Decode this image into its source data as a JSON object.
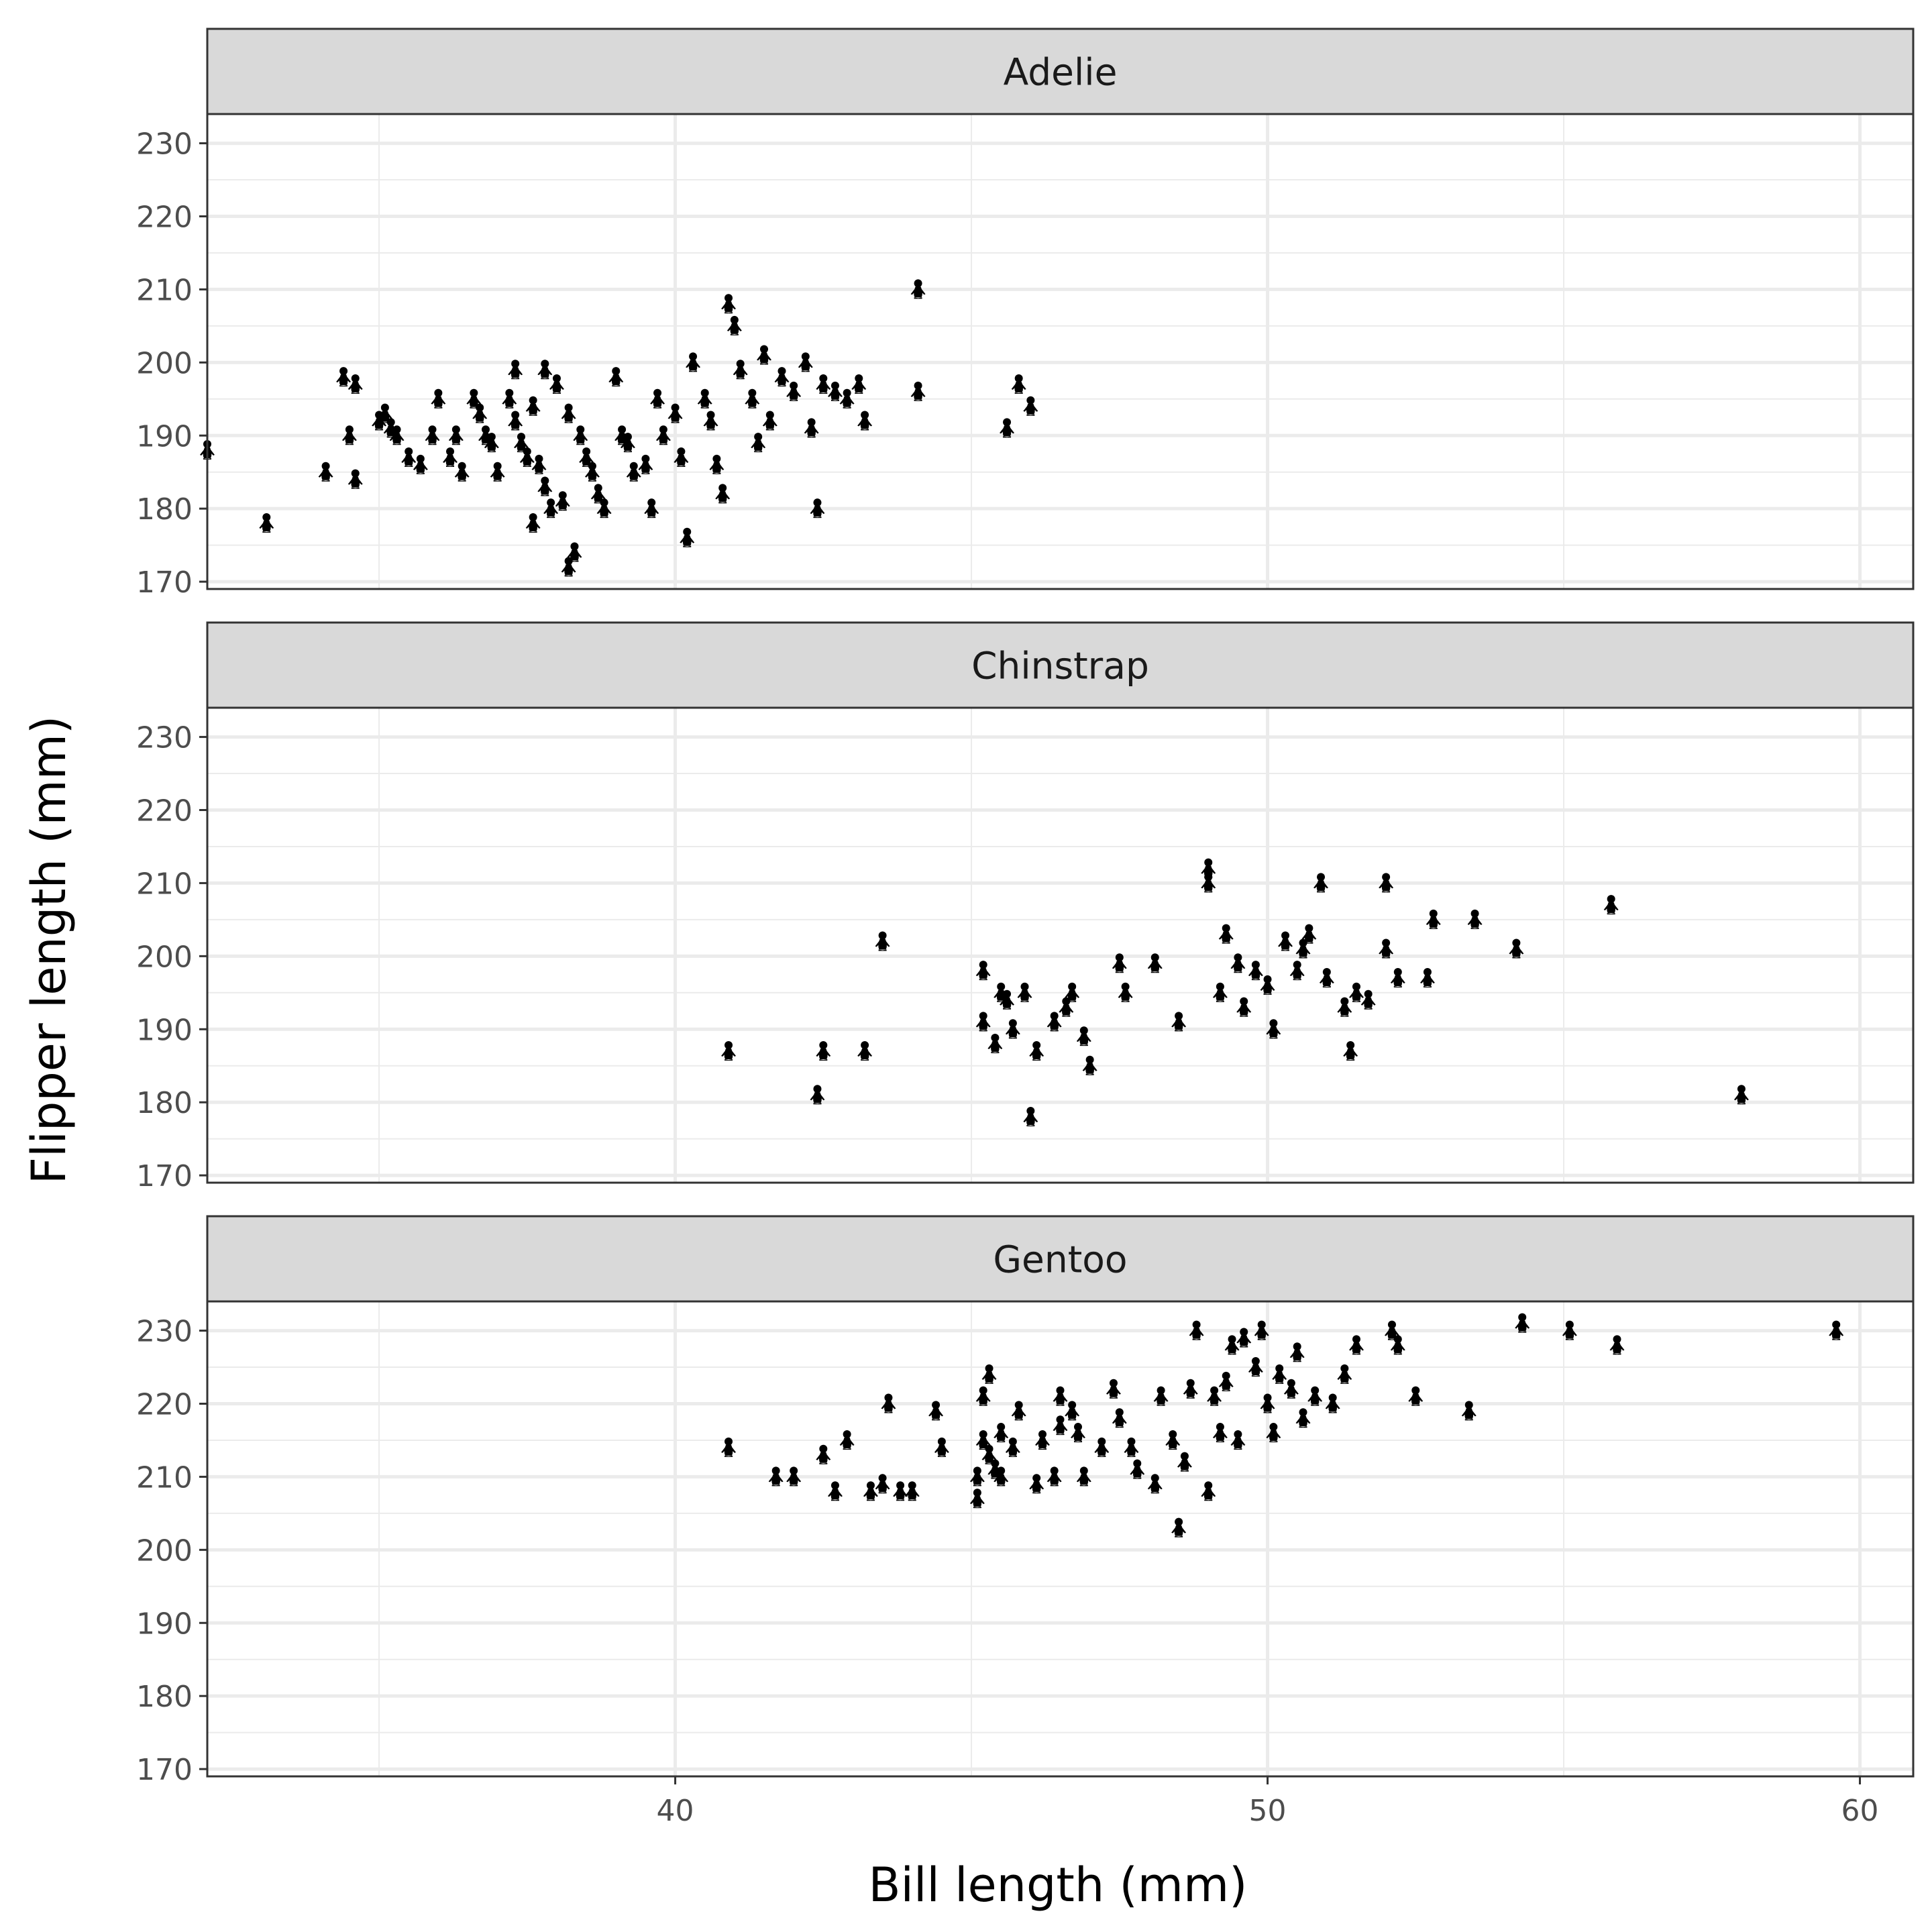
{
  "chart_data": {
    "type": "scatter",
    "marker": "penguin-icon",
    "xlabel": "Bill length (mm)",
    "ylabel": "Flipper length (mm)",
    "xlim": [
      32.1,
      60.9
    ],
    "ylim": [
      169,
      234
    ],
    "x_ticks": [
      40,
      50,
      60
    ],
    "y_ticks": [
      170,
      180,
      190,
      200,
      210,
      220,
      230
    ],
    "x_tick_labels": [
      "40",
      "50",
      "60"
    ],
    "y_tick_labels": [
      "170",
      "180",
      "190",
      "200",
      "210",
      "220",
      "230"
    ],
    "grid": true,
    "facets": [
      {
        "label": "Adelie",
        "points": [
          [
            32.1,
            188
          ],
          [
            33.1,
            178
          ],
          [
            34.5,
            190
          ],
          [
            34.1,
            185
          ],
          [
            34.6,
            184
          ],
          [
            34.4,
            198
          ],
          [
            34.6,
            197
          ],
          [
            35.0,
            192
          ],
          [
            35.3,
            190
          ],
          [
            35.5,
            187
          ],
          [
            35.7,
            186
          ],
          [
            35.9,
            190
          ],
          [
            36.0,
            195
          ],
          [
            35.1,
            193
          ],
          [
            35.2,
            191
          ],
          [
            36.2,
            187
          ],
          [
            36.3,
            190
          ],
          [
            36.4,
            185
          ],
          [
            36.6,
            195
          ],
          [
            36.7,
            193
          ],
          [
            36.8,
            190
          ],
          [
            36.9,
            189
          ],
          [
            37.0,
            185
          ],
          [
            37.2,
            195
          ],
          [
            37.3,
            192
          ],
          [
            37.4,
            189
          ],
          [
            37.5,
            187
          ],
          [
            37.6,
            194
          ],
          [
            37.7,
            186
          ],
          [
            37.8,
            183
          ],
          [
            37.9,
            180
          ],
          [
            38.1,
            181
          ],
          [
            37.6,
            178
          ],
          [
            38.2,
            172
          ],
          [
            38.3,
            174
          ],
          [
            37.3,
            199
          ],
          [
            37.8,
            199
          ],
          [
            38.0,
            197
          ],
          [
            38.2,
            193
          ],
          [
            38.4,
            190
          ],
          [
            38.5,
            187
          ],
          [
            38.6,
            185
          ],
          [
            38.7,
            182
          ],
          [
            38.8,
            180
          ],
          [
            39.0,
            198
          ],
          [
            39.1,
            190
          ],
          [
            39.2,
            189
          ],
          [
            39.3,
            185
          ],
          [
            39.5,
            186
          ],
          [
            39.6,
            180
          ],
          [
            39.7,
            195
          ],
          [
            39.8,
            190
          ],
          [
            40.0,
            193
          ],
          [
            40.1,
            187
          ],
          [
            40.2,
            176
          ],
          [
            40.3,
            200
          ],
          [
            40.5,
            195
          ],
          [
            40.6,
            192
          ],
          [
            40.7,
            186
          ],
          [
            40.8,
            182
          ],
          [
            40.9,
            208
          ],
          [
            41.0,
            205
          ],
          [
            41.1,
            199
          ],
          [
            41.3,
            195
          ],
          [
            41.4,
            189
          ],
          [
            41.5,
            201
          ],
          [
            41.6,
            192
          ],
          [
            41.8,
            198
          ],
          [
            42.0,
            196
          ],
          [
            42.2,
            200
          ],
          [
            42.3,
            191
          ],
          [
            42.4,
            180
          ],
          [
            42.5,
            197
          ],
          [
            42.7,
            196
          ],
          [
            42.9,
            195
          ],
          [
            43.1,
            197
          ],
          [
            43.2,
            192
          ],
          [
            44.1,
            210
          ],
          [
            44.1,
            196
          ],
          [
            45.6,
            191
          ],
          [
            45.8,
            197
          ],
          [
            46.0,
            194
          ]
        ]
      },
      {
        "label": "Chinstrap",
        "points": [
          [
            40.9,
            187
          ],
          [
            42.4,
            181
          ],
          [
            42.5,
            187
          ],
          [
            43.2,
            187
          ],
          [
            43.5,
            202
          ],
          [
            45.2,
            198
          ],
          [
            45.2,
            191
          ],
          [
            45.4,
            188
          ],
          [
            45.5,
            195
          ],
          [
            45.6,
            194
          ],
          [
            45.7,
            190
          ],
          [
            45.9,
            195
          ],
          [
            46.0,
            178
          ],
          [
            46.1,
            187
          ],
          [
            46.4,
            191
          ],
          [
            46.6,
            193
          ],
          [
            46.7,
            195
          ],
          [
            46.9,
            189
          ],
          [
            47.0,
            185
          ],
          [
            47.5,
            199
          ],
          [
            47.6,
            195
          ],
          [
            48.1,
            199
          ],
          [
            48.5,
            191
          ],
          [
            49.0,
            212
          ],
          [
            49.0,
            210
          ],
          [
            49.2,
            195
          ],
          [
            49.3,
            203
          ],
          [
            49.5,
            199
          ],
          [
            49.6,
            193
          ],
          [
            49.8,
            198
          ],
          [
            50.0,
            196
          ],
          [
            50.1,
            190
          ],
          [
            50.3,
            202
          ],
          [
            50.5,
            198
          ],
          [
            50.6,
            201
          ],
          [
            50.7,
            203
          ],
          [
            50.9,
            210
          ],
          [
            51.0,
            197
          ],
          [
            51.3,
            193
          ],
          [
            51.4,
            187
          ],
          [
            51.5,
            195
          ],
          [
            51.7,
            194
          ],
          [
            52.0,
            210
          ],
          [
            52.0,
            201
          ],
          [
            52.2,
            197
          ],
          [
            52.7,
            197
          ],
          [
            52.8,
            205
          ],
          [
            53.5,
            205
          ],
          [
            54.2,
            201
          ],
          [
            55.8,
            207
          ],
          [
            58.0,
            181
          ]
        ]
      },
      {
        "label": "Gentoo",
        "points": [
          [
            40.9,
            214
          ],
          [
            41.7,
            210
          ],
          [
            42.0,
            210
          ],
          [
            42.5,
            213
          ],
          [
            42.7,
            208
          ],
          [
            42.9,
            215
          ],
          [
            43.3,
            208
          ],
          [
            43.5,
            209
          ],
          [
            43.6,
            220
          ],
          [
            43.8,
            208
          ],
          [
            44.0,
            208
          ],
          [
            44.4,
            219
          ],
          [
            44.5,
            214
          ],
          [
            45.1,
            210
          ],
          [
            45.2,
            215
          ],
          [
            45.3,
            213
          ],
          [
            45.4,
            211
          ],
          [
            45.5,
            210
          ],
          [
            45.1,
            207
          ],
          [
            45.2,
            221
          ],
          [
            45.3,
            224
          ],
          [
            45.5,
            216
          ],
          [
            45.7,
            214
          ],
          [
            45.8,
            219
          ],
          [
            46.1,
            209
          ],
          [
            46.2,
            215
          ],
          [
            46.4,
            210
          ],
          [
            46.5,
            217
          ],
          [
            46.5,
            221
          ],
          [
            46.7,
            219
          ],
          [
            46.8,
            216
          ],
          [
            46.9,
            210
          ],
          [
            47.2,
            214
          ],
          [
            47.4,
            222
          ],
          [
            47.5,
            218
          ],
          [
            47.7,
            214
          ],
          [
            47.8,
            211
          ],
          [
            48.1,
            209
          ],
          [
            48.2,
            221
          ],
          [
            48.4,
            215
          ],
          [
            48.5,
            203
          ],
          [
            48.6,
            212
          ],
          [
            48.7,
            222
          ],
          [
            48.8,
            230
          ],
          [
            49.0,
            208
          ],
          [
            49.1,
            221
          ],
          [
            49.2,
            216
          ],
          [
            49.3,
            223
          ],
          [
            49.4,
            228
          ],
          [
            49.5,
            215
          ],
          [
            49.6,
            229
          ],
          [
            49.8,
            225
          ],
          [
            49.9,
            230
          ],
          [
            50.0,
            220
          ],
          [
            50.1,
            216
          ],
          [
            50.2,
            224
          ],
          [
            50.4,
            222
          ],
          [
            50.5,
            227
          ],
          [
            50.6,
            218
          ],
          [
            50.8,
            221
          ],
          [
            51.1,
            220
          ],
          [
            51.3,
            224
          ],
          [
            51.5,
            228
          ],
          [
            52.1,
            230
          ],
          [
            52.2,
            228
          ],
          [
            52.5,
            221
          ],
          [
            53.4,
            219
          ],
          [
            54.3,
            231
          ],
          [
            55.1,
            230
          ],
          [
            55.9,
            228
          ],
          [
            59.6,
            230
          ]
        ]
      }
    ]
  }
}
